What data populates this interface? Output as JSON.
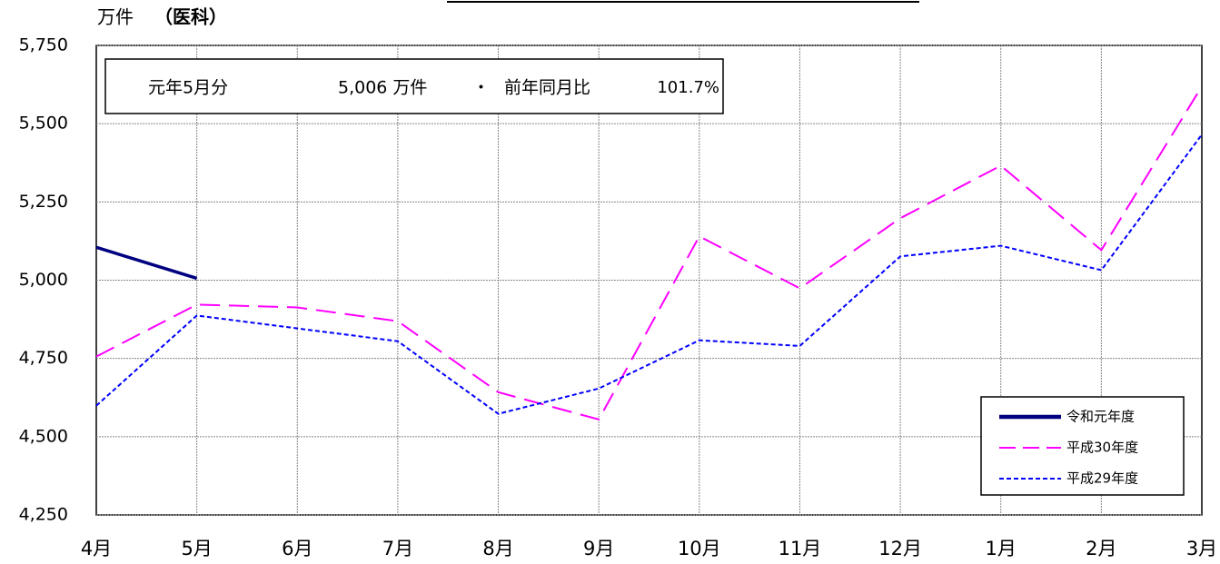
{
  "chart_data": {
    "type": "line",
    "y_label": "万件",
    "y_label_sub": "（医科）",
    "annotation": [
      "元年5月分",
      "5,006 万件",
      "・",
      "前年同月比",
      "101.7%"
    ],
    "categories": [
      "4月",
      "5月",
      "6月",
      "7月",
      "8月",
      "9月",
      "10月",
      "11月",
      "12月",
      "1月",
      "2月",
      "3月"
    ],
    "series": [
      {
        "name": "令和元年度",
        "color": "#000080",
        "dash": "solid",
        "values": [
          5105,
          5006,
          null,
          null,
          null,
          null,
          null,
          null,
          null,
          null,
          null,
          null
        ]
      },
      {
        "name": "平成30年度",
        "color": "#ff00ff",
        "dash": "dashed",
        "values": [
          4756,
          4922,
          4913,
          4869,
          4642,
          4555,
          5140,
          4974,
          5198,
          5366,
          5096,
          5619
        ]
      },
      {
        "name": "平成29年度",
        "color": "#0000ff",
        "dash": "dotted",
        "values": [
          4599,
          4887,
          4846,
          4805,
          4573,
          4654,
          4808,
          4790,
          5076,
          5110,
          5032,
          5465
        ]
      }
    ],
    "ylim": [
      4250,
      5750
    ],
    "yticks": [
      {
        "value": 4250,
        "label": "4,250"
      },
      {
        "value": 4500,
        "label": "4,500"
      },
      {
        "value": 4750,
        "label": "4,750"
      },
      {
        "value": 5000,
        "label": "5,000"
      },
      {
        "value": 5250,
        "label": "5,250"
      },
      {
        "value": 5500,
        "label": "5,500"
      },
      {
        "value": 5750,
        "label": "5,750"
      }
    ],
    "grid": true,
    "legend": "lower right"
  }
}
